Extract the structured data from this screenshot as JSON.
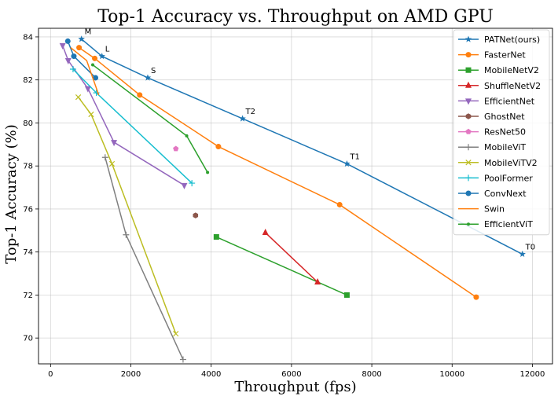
{
  "chart_data": {
    "type": "line",
    "title": "Top-1 Accuracy vs. Throughput on AMD GPU",
    "xlabel": "Throughput (fps)",
    "ylabel": "Top-1 Accuracy (%)",
    "xlim": [
      -300,
      12500
    ],
    "ylim": [
      68.8,
      84.4
    ],
    "xticks": [
      0,
      2000,
      4000,
      6000,
      8000,
      10000,
      12000
    ],
    "yticks": [
      70,
      72,
      74,
      76,
      78,
      80,
      82,
      84
    ],
    "grid": true,
    "legend_position": "top-right",
    "series": [
      {
        "name": "PATNet(ours)",
        "color": "#1f77b4",
        "marker": "star",
        "x": [
          770,
          1280,
          2420,
          4780,
          7380,
          11750
        ],
        "y": [
          83.9,
          83.1,
          82.1,
          80.2,
          78.1,
          73.9
        ],
        "point_labels": [
          "M",
          "L",
          "S",
          "T2",
          "T1",
          "T0"
        ]
      },
      {
        "name": "FasterNet",
        "color": "#ff7f0e",
        "marker": "circle",
        "x": [
          710,
          1100,
          2220,
          4180,
          7200,
          10600
        ],
        "y": [
          83.5,
          83.0,
          81.3,
          78.9,
          76.2,
          71.9
        ]
      },
      {
        "name": "MobileNetV2",
        "color": "#2ca02c",
        "marker": "square",
        "x": [
          4130,
          7380
        ],
        "y": [
          74.7,
          72.0
        ]
      },
      {
        "name": "ShuffleNetV2",
        "color": "#d62728",
        "marker": "triangle-up",
        "x": [
          5350,
          6650
        ],
        "y": [
          74.9,
          72.6
        ]
      },
      {
        "name": "EfficientNet",
        "color": "#9467bd",
        "marker": "triangle-down",
        "x": [
          300,
          440,
          930,
          1580,
          3330
        ],
        "y": [
          83.6,
          82.9,
          81.6,
          79.1,
          77.1
        ]
      },
      {
        "name": "GhostNet",
        "color": "#8c564b",
        "marker": "hexagon",
        "x": [
          3610
        ],
        "y": [
          75.7
        ]
      },
      {
        "name": "ResNet50",
        "color": "#e377c2",
        "marker": "pentagon",
        "x": [
          3120
        ],
        "y": [
          78.8
        ]
      },
      {
        "name": "MobileViT",
        "color": "#7f7f7f",
        "marker": "plus",
        "x": [
          1360,
          1880,
          3300
        ],
        "y": [
          78.4,
          74.8,
          69.0
        ]
      },
      {
        "name": "MobileViTV2",
        "color": "#bcbd22",
        "marker": "x",
        "x": [
          690,
          1010,
          1530,
          3120
        ],
        "y": [
          81.2,
          80.4,
          78.1,
          70.2
        ]
      },
      {
        "name": "PoolFormer",
        "color": "#17becf",
        "marker": "plus",
        "x": [
          560,
          1140,
          3520
        ],
        "y": [
          82.5,
          81.4,
          77.2
        ]
      },
      {
        "name": "ConvNext",
        "color": "#1f77b4",
        "marker": "circle",
        "x": [
          430,
          580,
          1120
        ],
        "y": [
          83.8,
          83.1,
          82.1
        ]
      },
      {
        "name": "Swin",
        "color": "#ff7f0e",
        "marker": "none",
        "x": [
          500,
          900,
          1200
        ],
        "y": [
          83.5,
          82.9,
          81.3
        ]
      },
      {
        "name": "EfficientViT",
        "color": "#2ca02c",
        "marker": "dot",
        "x": [
          1050,
          3390,
          3910
        ],
        "y": [
          82.7,
          79.4,
          77.7
        ]
      }
    ]
  }
}
